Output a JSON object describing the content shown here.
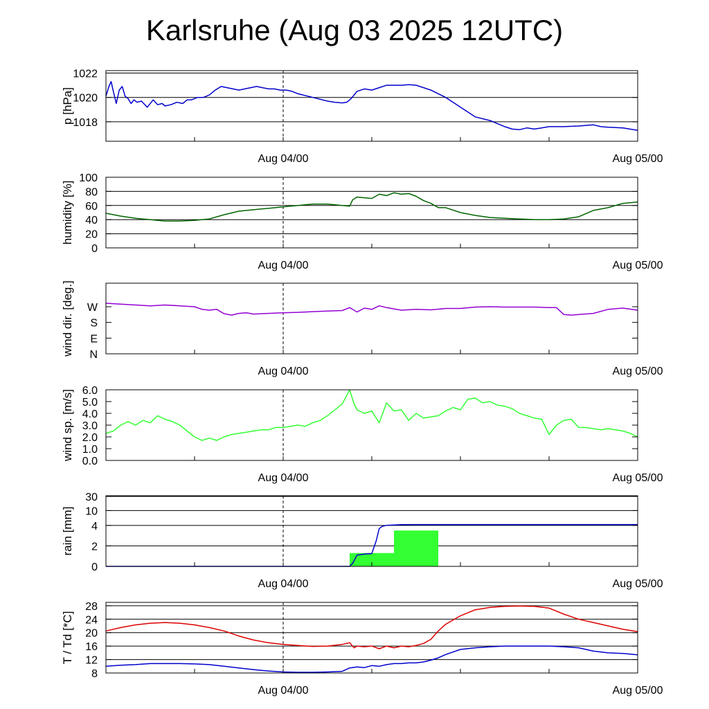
{
  "title": "Karlsruhe (Aug 03 2025 12UTC)",
  "chart_data": [
    {
      "type": "line",
      "ylabel": "p [hPa]",
      "ylim": [
        1016.4,
        1022.2
      ],
      "yticks": [
        1018,
        1020,
        1022
      ],
      "ytick_labels": [
        "1018",
        "1020",
        "1022"
      ],
      "gridlines": [
        1018,
        1020,
        1022
      ],
      "xlim": [
        0,
        36
      ],
      "xticks": [
        12,
        36
      ],
      "xtick_labels": [
        "Aug 04/00",
        "Aug 05/00"
      ],
      "marker_x": 12,
      "series": [
        {
          "color": "#0000cc",
          "x": [
            0,
            0.2,
            0.35,
            0.5,
            0.7,
            0.9,
            1.1,
            1.3,
            1.5,
            1.7,
            1.9,
            2.1,
            2.4,
            2.8,
            3.2,
            3.5,
            3.8,
            4.0,
            4.4,
            4.8,
            5.2,
            5.5,
            5.8,
            6.2,
            6.6,
            7.0,
            7.4,
            7.8,
            8.2,
            8.6,
            9.0,
            9.4,
            9.8,
            10.2,
            10.6,
            11.0,
            11.4,
            11.8,
            12.2,
            12.6,
            13.0,
            14.0,
            15.0,
            15.5,
            16.0,
            16.3,
            16.6,
            17.0,
            17.5,
            18.0,
            18.5,
            19.0,
            19.5,
            20.0,
            20.5,
            21.0,
            22.0,
            22.5,
            23.0,
            24.0,
            25.0,
            26.0,
            27.0,
            27.5,
            28.0,
            28.5,
            29.0,
            29.5,
            30.0,
            31.0,
            32.0,
            33.0,
            33.5,
            34.0,
            35.0,
            36.0
          ],
          "y": [
            1020.1,
            1020.9,
            1021.3,
            1020.5,
            1019.5,
            1020.6,
            1020.9,
            1020.1,
            1019.9,
            1019.5,
            1019.8,
            1019.6,
            1019.7,
            1019.2,
            1019.8,
            1019.4,
            1019.5,
            1019.3,
            1019.4,
            1019.6,
            1019.5,
            1019.8,
            1019.8,
            1020.0,
            1020.0,
            1020.2,
            1020.6,
            1020.9,
            1020.8,
            1020.7,
            1020.6,
            1020.7,
            1020.8,
            1020.9,
            1020.8,
            1020.7,
            1020.7,
            1020.6,
            1020.6,
            1020.5,
            1020.3,
            1020.0,
            1019.7,
            1019.6,
            1019.55,
            1019.6,
            1019.9,
            1020.5,
            1020.7,
            1020.6,
            1020.8,
            1021.0,
            1021.0,
            1021.0,
            1021.05,
            1021.0,
            1020.6,
            1020.3,
            1020.0,
            1019.2,
            1018.4,
            1018.1,
            1017.6,
            1017.4,
            1017.35,
            1017.5,
            1017.4,
            1017.5,
            1017.6,
            1017.6,
            1017.65,
            1017.75,
            1017.6,
            1017.55,
            1017.5,
            1017.3
          ]
        }
      ]
    },
    {
      "type": "line",
      "ylabel": "humidity [%]",
      "ylim": [
        0,
        100
      ],
      "yticks": [
        0,
        20,
        40,
        60,
        80,
        100
      ],
      "ytick_labels": [
        "0",
        "20",
        "40",
        "60",
        "80",
        "100"
      ],
      "gridlines": [
        20,
        40,
        60,
        80,
        100
      ],
      "xlim": [
        0,
        36
      ],
      "xticks": [
        12,
        36
      ],
      "xtick_labels": [
        "Aug 04/00",
        "Aug 05/00"
      ],
      "marker_x": 12,
      "series": [
        {
          "color": "#006400",
          "x": [
            0,
            1,
            2,
            3,
            4,
            5,
            6,
            7,
            8,
            9,
            10,
            11,
            12,
            13,
            14,
            15,
            16,
            16.5,
            16.7,
            17,
            17.5,
            18,
            18.5,
            19,
            19.5,
            20,
            20.5,
            21,
            21.5,
            22,
            22.5,
            23,
            24,
            25,
            26,
            27,
            28,
            29,
            30,
            31,
            32,
            33,
            34,
            35,
            36
          ],
          "y": [
            49,
            45,
            42,
            40,
            38,
            38,
            39,
            41,
            47,
            52,
            54,
            56,
            58,
            60,
            62,
            62,
            60,
            59,
            68,
            72,
            71,
            70,
            76,
            74,
            78,
            76,
            77,
            73,
            67,
            63,
            57,
            57,
            50,
            46,
            43,
            42,
            41,
            40,
            40,
            41,
            44,
            53,
            57,
            63,
            65
          ]
        }
      ]
    },
    {
      "type": "line",
      "ylabel": "wind dir. [deg.]",
      "ylim": [
        0,
        405
      ],
      "yticks": [
        0,
        90,
        180,
        270
      ],
      "ytick_labels": [
        "N",
        "E",
        "S",
        "W"
      ],
      "gridlines": [],
      "xlim": [
        0,
        36
      ],
      "xticks": [
        12,
        36
      ],
      "xtick_labels": [
        "Aug 04/00",
        "Aug 05/00"
      ],
      "marker_x": 12,
      "series": [
        {
          "color": "#9400d3",
          "x": [
            0,
            1,
            2,
            3,
            4,
            5,
            6,
            6.5,
            7,
            7.5,
            8,
            8.5,
            9,
            9.5,
            10,
            11,
            12,
            13,
            14,
            15,
            16,
            16.5,
            17,
            17.5,
            18,
            18.5,
            19,
            20,
            21,
            22,
            23,
            24,
            25,
            26,
            27,
            28,
            29,
            30,
            30.5,
            31,
            31.5,
            32,
            33,
            34,
            35,
            36
          ],
          "y": [
            290,
            285,
            280,
            275,
            280,
            275,
            270,
            255,
            250,
            255,
            230,
            222,
            232,
            235,
            228,
            232,
            235,
            238,
            242,
            245,
            248,
            265,
            240,
            262,
            255,
            275,
            265,
            250,
            255,
            252,
            260,
            260,
            268,
            270,
            268,
            268,
            268,
            265,
            265,
            225,
            222,
            225,
            232,
            255,
            262,
            250
          ]
        }
      ]
    },
    {
      "type": "line",
      "ylabel": "wind sp. [m/s]",
      "ylim": [
        0,
        6.0
      ],
      "yticks": [
        0,
        1,
        2,
        3,
        4,
        5,
        6
      ],
      "ytick_labels": [
        "0.0",
        "1.0",
        "2.0",
        "3.0",
        "4.0",
        "5.0",
        "6.0"
      ],
      "gridlines": [],
      "xlim": [
        0,
        36
      ],
      "xticks": [
        12,
        36
      ],
      "xtick_labels": [
        "Aug 04/00",
        "Aug 05/00"
      ],
      "marker_x": 12,
      "series": [
        {
          "color": "#33ff33",
          "x": [
            0,
            0.5,
            1,
            1.5,
            2,
            2.5,
            3,
            3.5,
            4,
            4.5,
            5,
            5.5,
            6,
            6.5,
            7,
            7.5,
            8,
            8.5,
            9,
            9.5,
            10,
            10.5,
            11,
            11.5,
            12,
            12.5,
            13,
            13.5,
            14,
            14.5,
            15,
            15.5,
            16,
            16.5,
            16.8,
            17,
            17.5,
            18,
            18.5,
            19,
            19.5,
            20,
            20.5,
            21,
            21.5,
            22,
            22.5,
            23,
            23.5,
            24,
            24.5,
            25,
            25.5,
            26,
            26.5,
            27,
            27.5,
            28,
            28.5,
            29,
            29.5,
            30,
            30.5,
            31,
            31.5,
            32,
            32.5,
            33,
            33.5,
            34,
            34.5,
            35,
            35.5,
            36
          ],
          "y": [
            2.3,
            2.5,
            3.0,
            3.3,
            3.0,
            3.4,
            3.2,
            3.8,
            3.5,
            3.3,
            3.0,
            2.5,
            2.0,
            1.7,
            1.9,
            1.7,
            2.0,
            2.2,
            2.3,
            2.4,
            2.5,
            2.6,
            2.6,
            2.8,
            2.8,
            2.9,
            3.0,
            2.9,
            3.2,
            3.4,
            3.8,
            4.3,
            4.8,
            6.0,
            4.8,
            4.3,
            4.0,
            4.2,
            3.2,
            4.9,
            4.2,
            4.3,
            3.4,
            4.0,
            3.6,
            3.7,
            3.8,
            4.2,
            4.5,
            4.3,
            5.2,
            5.3,
            4.9,
            5.0,
            4.7,
            4.6,
            4.4,
            4.0,
            3.8,
            3.6,
            3.5,
            2.2,
            3.0,
            3.4,
            3.5,
            2.8,
            2.8,
            2.7,
            2.6,
            2.7,
            2.6,
            2.5,
            2.3,
            2.0
          ]
        }
      ]
    },
    {
      "type": "bar+line",
      "ylabel": "rain [mm]",
      "ylim": [
        0,
        30
      ],
      "yticks": [
        0,
        2,
        4,
        10,
        30
      ],
      "ytick_labels": [
        "0",
        "2",
        "4",
        "10",
        "30"
      ],
      "gridlines": [
        2,
        4,
        10,
        30
      ],
      "xlim": [
        0,
        36
      ],
      "xticks": [
        12,
        36
      ],
      "xtick_labels": [
        "Aug 04/00",
        "Aug 05/00"
      ],
      "marker_x": 12,
      "bars": [
        {
          "x0": 16.5,
          "x1": 19.5,
          "value": 1.3,
          "color": "#33ff33"
        },
        {
          "x0": 19.5,
          "x1": 22.5,
          "value": 3.5,
          "color": "#33ff33"
        }
      ],
      "series": [
        {
          "color": "#0000cc",
          "x": [
            0,
            16.5,
            16.7,
            17.0,
            17.5,
            18.0,
            18.3,
            18.5,
            18.7,
            19.0,
            20.0,
            21.0,
            22.0,
            24.0,
            28.0,
            32.0,
            36.0
          ],
          "y": [
            0,
            0,
            0.3,
            1.1,
            1.2,
            1.25,
            2.5,
            3.7,
            3.9,
            4.05,
            4.3,
            4.35,
            4.35,
            4.35,
            4.35,
            4.35,
            4.35
          ]
        }
      ]
    },
    {
      "type": "line",
      "ylabel": "T / Td [*C]",
      "ylim": [
        8,
        29
      ],
      "yticks": [
        8,
        12,
        16,
        20,
        24,
        28
      ],
      "ytick_labels": [
        "8",
        "12",
        "16",
        "20",
        "24",
        "28"
      ],
      "gridlines": [
        12,
        16,
        20,
        24,
        28
      ],
      "xlim": [
        0,
        36
      ],
      "xticks": [
        12,
        36
      ],
      "xtick_labels": [
        "Aug 04/00",
        "Aug 05/00"
      ],
      "marker_x": 12,
      "series": [
        {
          "color": "#dd0000",
          "x": [
            0,
            1,
            2,
            3,
            4,
            5,
            6,
            7,
            8,
            9,
            10,
            11,
            12,
            13,
            14,
            15,
            16,
            16.5,
            16.8,
            17,
            17.5,
            18,
            18.5,
            19,
            19.5,
            20,
            20.5,
            21,
            21.5,
            22,
            22.5,
            23,
            24,
            25,
            26,
            27,
            28,
            29,
            30,
            31,
            32,
            33,
            34,
            35,
            36
          ],
          "y": [
            20.5,
            21.5,
            22.3,
            22.8,
            23.0,
            22.8,
            22.3,
            21.5,
            20.5,
            19.0,
            17.8,
            17.0,
            16.5,
            16.2,
            15.9,
            16.0,
            16.5,
            17.0,
            15.5,
            16.0,
            15.8,
            16.0,
            15.2,
            16.0,
            15.5,
            16.0,
            15.8,
            16.2,
            16.8,
            18.0,
            20.5,
            22.5,
            25.0,
            26.8,
            27.5,
            27.8,
            27.9,
            27.8,
            27.3,
            25.5,
            24.0,
            23.0,
            22.0,
            21.0,
            20.3
          ]
        },
        {
          "color": "#0000cc",
          "x": [
            0,
            1,
            2,
            3,
            4,
            5,
            6,
            7,
            8,
            9,
            10,
            11,
            12,
            13,
            14,
            15,
            16,
            16.5,
            17,
            17.5,
            18,
            18.5,
            19,
            19.5,
            20,
            20.5,
            21,
            21.5,
            22,
            22.5,
            23,
            24,
            25,
            26,
            27,
            28,
            29,
            30,
            31,
            32,
            33,
            34,
            35,
            36
          ],
          "y": [
            10.0,
            10.3,
            10.5,
            10.8,
            10.8,
            10.8,
            10.7,
            10.5,
            10.0,
            9.5,
            9.0,
            8.6,
            8.3,
            8.2,
            8.2,
            8.3,
            8.5,
            9.5,
            9.8,
            9.6,
            10.2,
            10.0,
            10.5,
            10.8,
            10.8,
            11.0,
            11.0,
            11.3,
            11.8,
            12.5,
            13.5,
            15.0,
            15.5,
            15.8,
            16.0,
            16.0,
            16.0,
            16.0,
            15.8,
            15.5,
            14.5,
            14.0,
            13.8,
            13.4
          ]
        }
      ]
    }
  ]
}
